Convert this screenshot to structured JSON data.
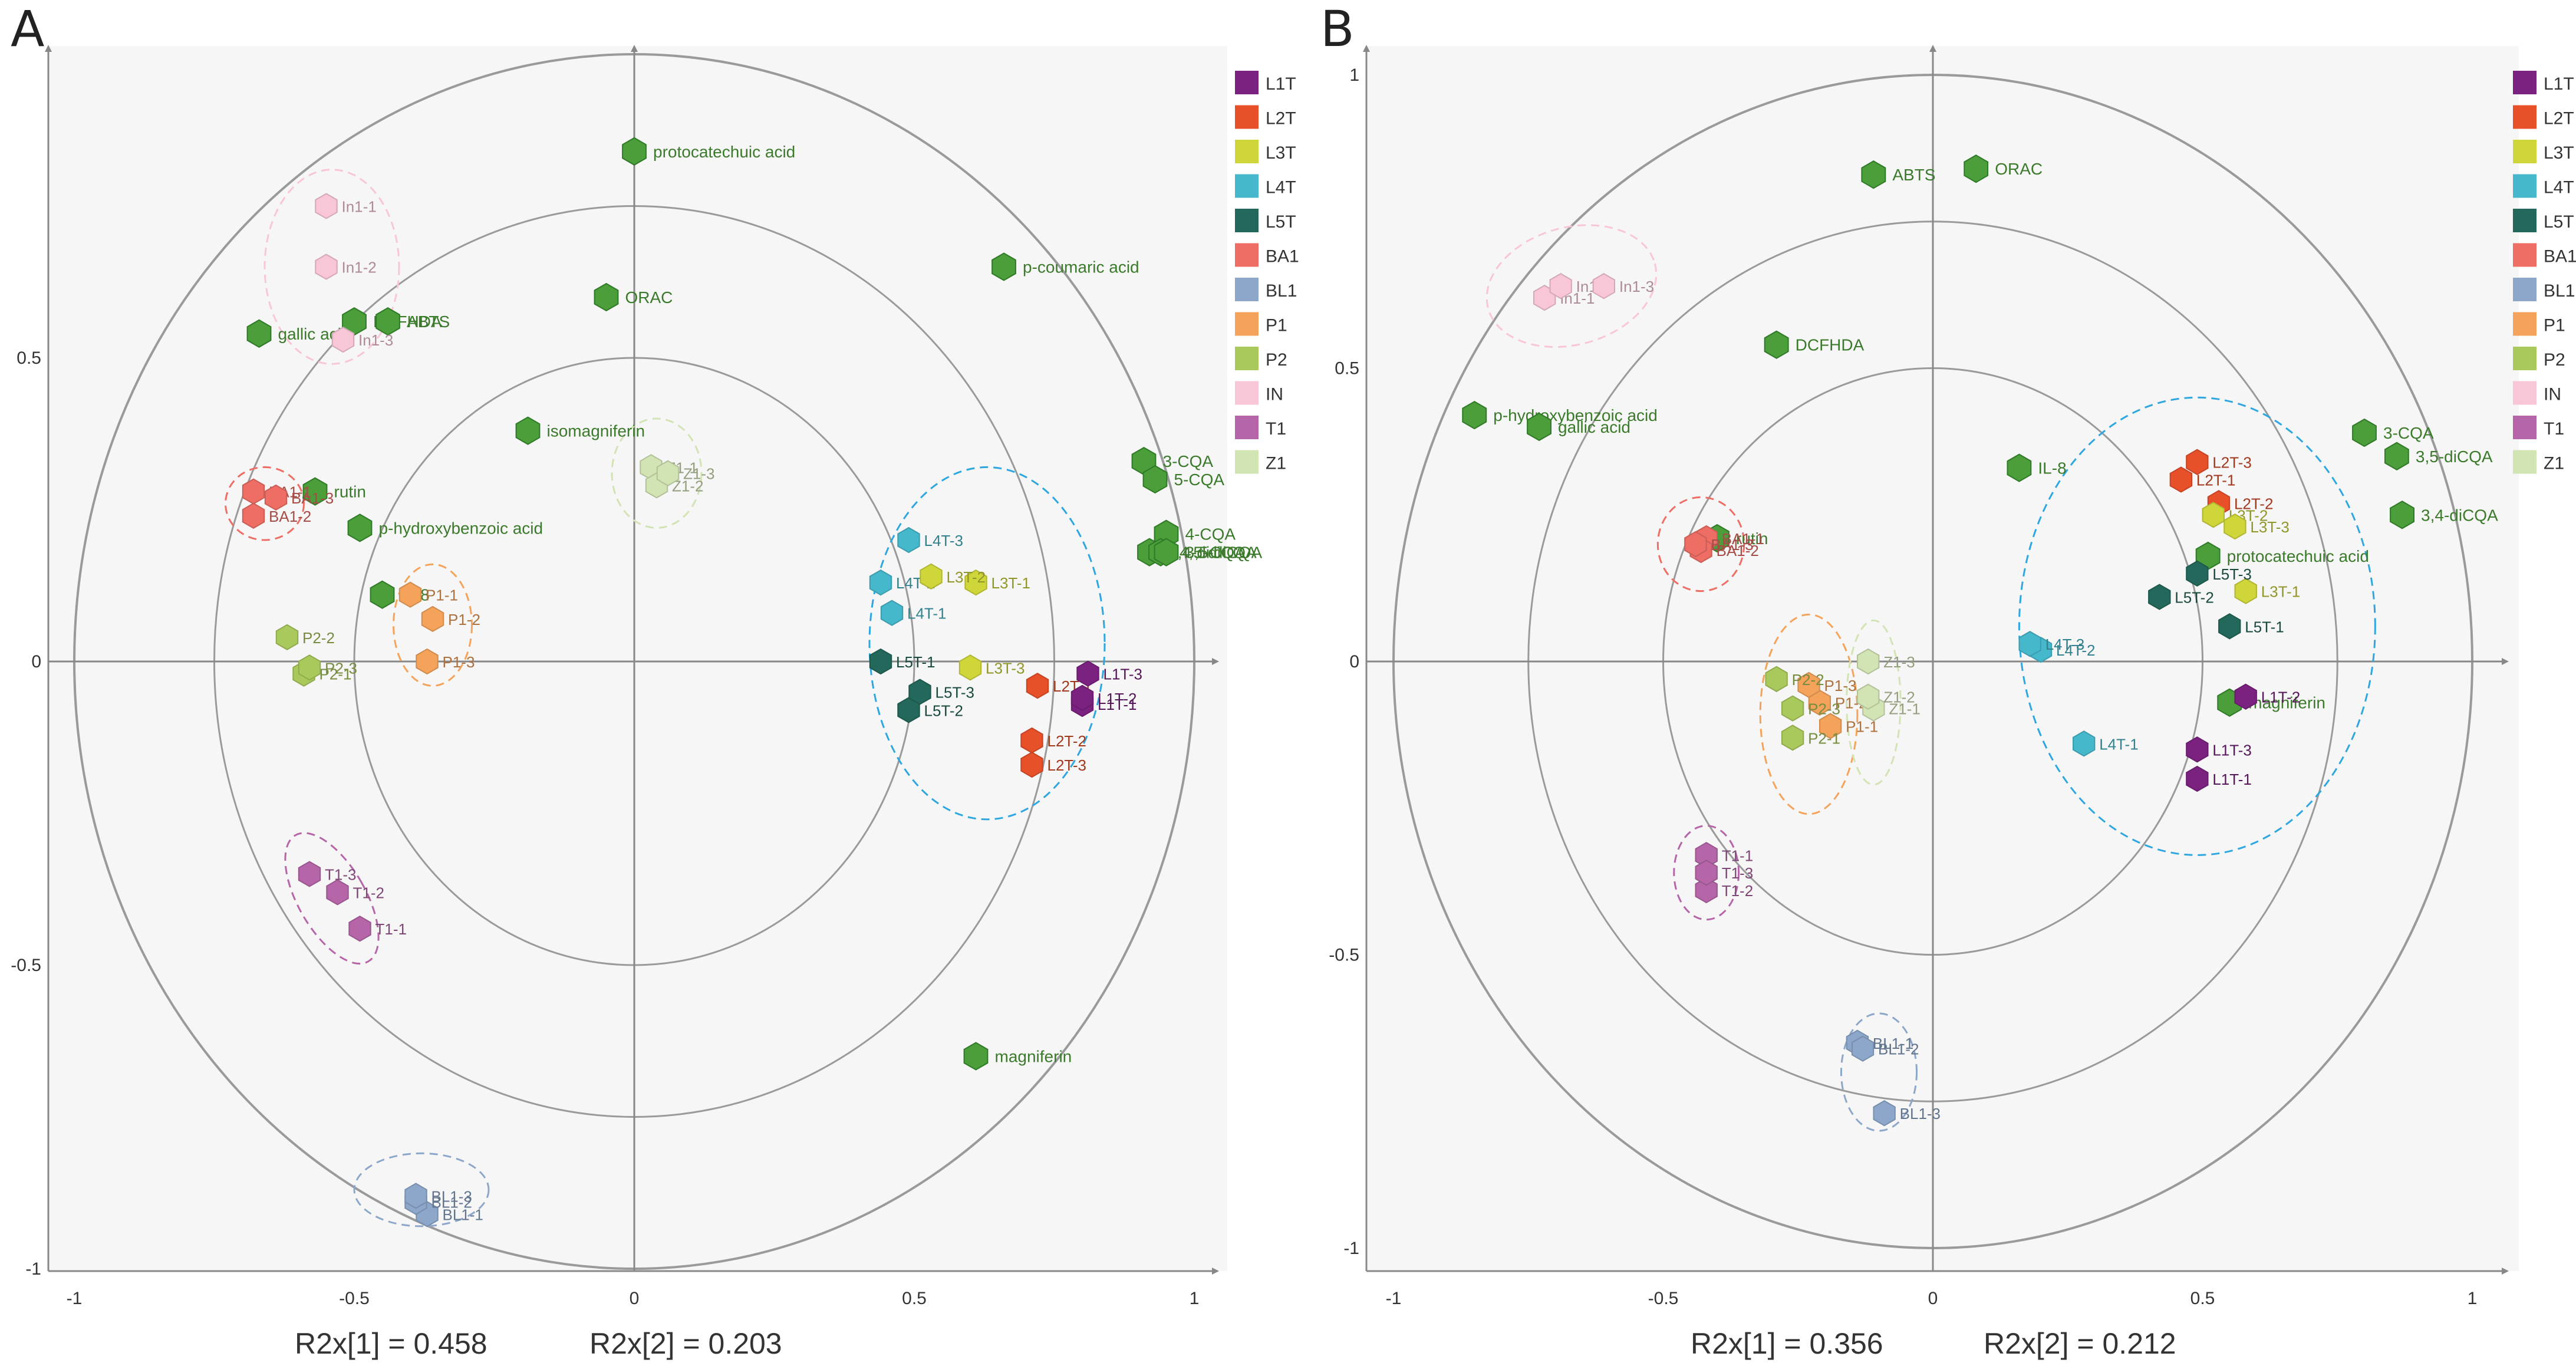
{
  "chart_data": [
    {
      "type": "scatter",
      "panel": "A",
      "subtype": "PCA biplot",
      "xlim": [
        -1,
        1
      ],
      "ylim": [
        -1,
        1
      ],
      "xticks": [
        {
          "v": -1,
          "label": "-1"
        },
        {
          "v": -0.5,
          "label": "-0.5"
        },
        {
          "v": 0,
          "label": "0"
        },
        {
          "v": 0.5,
          "label": "0.5"
        },
        {
          "v": 1,
          "label": "1"
        }
      ],
      "yticks": [
        {
          "v": -1,
          "label": "-1"
        },
        {
          "v": -0.5,
          "label": "-0.5"
        },
        {
          "v": 0,
          "label": "0"
        },
        {
          "v": 0.5,
          "label": "0.5"
        }
      ],
      "circle_radii": [
        0.5,
        0.75,
        1.0
      ],
      "r2x1": "R2x[1] = 0.458",
      "r2x2": "R2x[2] = 0.203",
      "variables": [
        {
          "label": "protocatechuic acid",
          "x": 0.0,
          "y": 0.84
        },
        {
          "label": "p-coumaric acid",
          "x": 0.66,
          "y": 0.65
        },
        {
          "label": "ORAC",
          "x": -0.05,
          "y": 0.6
        },
        {
          "label": "gallic acid",
          "x": -0.67,
          "y": 0.54
        },
        {
          "label": "DCFHDA",
          "x": -0.5,
          "y": 0.56
        },
        {
          "label": "ABTS",
          "x": -0.44,
          "y": 0.56
        },
        {
          "label": "isomagniferin",
          "x": -0.19,
          "y": 0.38
        },
        {
          "label": "rutin",
          "x": -0.57,
          "y": 0.28
        },
        {
          "label": "p-hydroxybenzoic acid",
          "x": -0.49,
          "y": 0.22
        },
        {
          "label": "IL-8",
          "x": -0.45,
          "y": 0.11
        },
        {
          "label": "3-CQA",
          "x": 0.91,
          "y": 0.33
        },
        {
          "label": "5-CQA",
          "x": 0.93,
          "y": 0.3
        },
        {
          "label": "4-CQA",
          "x": 0.95,
          "y": 0.21
        },
        {
          "label": "3,4-diCQA",
          "x": 0.92,
          "y": 0.18
        },
        {
          "label": "4,5-diCQA",
          "x": 0.94,
          "y": 0.18
        },
        {
          "label": "3,5-diCQA",
          "x": 0.95,
          "y": 0.18
        },
        {
          "label": "magniferin",
          "x": 0.61,
          "y": -0.65
        }
      ],
      "samples": [
        {
          "label": "In1-1",
          "group": "IN",
          "x": -0.55,
          "y": 0.75
        },
        {
          "label": "In1-2",
          "group": "IN",
          "x": -0.55,
          "y": 0.65
        },
        {
          "label": "In1-3",
          "group": "IN",
          "x": -0.52,
          "y": 0.53
        },
        {
          "label": "BA1-1",
          "group": "BA1",
          "x": -0.68,
          "y": 0.28
        },
        {
          "label": "BA1-2",
          "group": "BA1",
          "x": -0.68,
          "y": 0.24
        },
        {
          "label": "BA1-3",
          "group": "BA1",
          "x": -0.64,
          "y": 0.27
        },
        {
          "label": "P1-1",
          "group": "P1",
          "x": -0.4,
          "y": 0.11
        },
        {
          "label": "P1-2",
          "group": "P1",
          "x": -0.36,
          "y": 0.07
        },
        {
          "label": "P1-3",
          "group": "P1",
          "x": -0.37,
          "y": 0.0
        },
        {
          "label": "P2-1",
          "group": "P2",
          "x": -0.59,
          "y": -0.02
        },
        {
          "label": "P2-2",
          "group": "P2",
          "x": -0.62,
          "y": 0.04
        },
        {
          "label": "P2-3",
          "group": "P2",
          "x": -0.58,
          "y": -0.01
        },
        {
          "label": "Z1-1",
          "group": "Z1",
          "x": 0.03,
          "y": 0.32
        },
        {
          "label": "Z1-2",
          "group": "Z1",
          "x": 0.04,
          "y": 0.29
        },
        {
          "label": "Z1-3",
          "group": "Z1",
          "x": 0.06,
          "y": 0.31
        },
        {
          "label": "T1-1",
          "group": "T1",
          "x": -0.49,
          "y": -0.44
        },
        {
          "label": "T1-2",
          "group": "T1",
          "x": -0.53,
          "y": -0.38
        },
        {
          "label": "T1-3",
          "group": "T1",
          "x": -0.58,
          "y": -0.35
        },
        {
          "label": "BL1-1",
          "group": "BL1",
          "x": -0.37,
          "y": -0.91
        },
        {
          "label": "BL1-2",
          "group": "BL1",
          "x": -0.39,
          "y": -0.89
        },
        {
          "label": "BL1-3",
          "group": "BL1",
          "x": -0.39,
          "y": -0.88
        },
        {
          "label": "L4T-1",
          "group": "L4T",
          "x": 0.46,
          "y": 0.08
        },
        {
          "label": "L4T-2",
          "group": "L4T",
          "x": 0.44,
          "y": 0.13
        },
        {
          "label": "L4T-3",
          "group": "L4T",
          "x": 0.49,
          "y": 0.2
        },
        {
          "label": "L3T-1",
          "group": "L3T",
          "x": 0.61,
          "y": 0.13
        },
        {
          "label": "L3T-2",
          "group": "L3T",
          "x": 0.53,
          "y": 0.14
        },
        {
          "label": "L3T-3",
          "group": "L3T",
          "x": 0.6,
          "y": -0.01
        },
        {
          "label": "L5T-1",
          "group": "L5T",
          "x": 0.44,
          "y": 0.0
        },
        {
          "label": "L5T-2",
          "group": "L5T",
          "x": 0.49,
          "y": -0.08
        },
        {
          "label": "L5T-3",
          "group": "L5T",
          "x": 0.51,
          "y": -0.05
        },
        {
          "label": "L2T-1",
          "group": "L2T",
          "x": 0.72,
          "y": -0.04
        },
        {
          "label": "L2T-2",
          "group": "L2T",
          "x": 0.71,
          "y": -0.13
        },
        {
          "label": "L2T-3",
          "group": "L2T",
          "x": 0.71,
          "y": -0.17
        },
        {
          "label": "L1T-1",
          "group": "L1T",
          "x": 0.8,
          "y": -0.07
        },
        {
          "label": "L1T-2",
          "group": "L1T",
          "x": 0.8,
          "y": -0.06
        },
        {
          "label": "L1T-3",
          "group": "L1T",
          "x": 0.81,
          "y": -0.02
        }
      ],
      "ellipses": [
        {
          "group": "IN",
          "cx": -0.54,
          "cy": 0.65,
          "rx": 0.12,
          "ry": 0.16
        },
        {
          "group": "BA1",
          "cx": -0.66,
          "cy": 0.26,
          "rx": 0.07,
          "ry": 0.06
        },
        {
          "group": "P1",
          "cx": -0.36,
          "cy": 0.06,
          "rx": 0.07,
          "ry": 0.1
        },
        {
          "group": "Z1",
          "cx": 0.04,
          "cy": 0.31,
          "rx": 0.08,
          "ry": 0.09
        },
        {
          "group": "T1",
          "cx": -0.54,
          "cy": -0.39,
          "rx": 0.06,
          "ry": 0.12,
          "rot": -30
        },
        {
          "group": "BL1",
          "cx": -0.38,
          "cy": -0.87,
          "rx": 0.12,
          "ry": 0.06
        },
        {
          "group": "L",
          "cx": 0.63,
          "cy": 0.03,
          "rx": 0.21,
          "ry": 0.29
        }
      ]
    },
    {
      "type": "scatter",
      "panel": "B",
      "subtype": "PCA biplot",
      "xlim": [
        -1,
        1
      ],
      "ylim": [
        -1,
        1
      ],
      "xticks": [
        {
          "v": -1,
          "label": "-1"
        },
        {
          "v": -0.5,
          "label": "-0.5"
        },
        {
          "v": 0,
          "label": "0"
        },
        {
          "v": 0.5,
          "label": "0.5"
        },
        {
          "v": 1,
          "label": "1"
        }
      ],
      "yticks": [
        {
          "v": -1,
          "label": "-1"
        },
        {
          "v": -0.5,
          "label": "-0.5"
        },
        {
          "v": 0,
          "label": "0"
        },
        {
          "v": 0.5,
          "label": "0.5"
        },
        {
          "v": 1,
          "label": "1"
        }
      ],
      "circle_radii": [
        0.5,
        0.75,
        1.0
      ],
      "r2x1": "R2x[1] = 0.356",
      "r2x2": "R2x[2] = 0.212",
      "variables": [
        {
          "label": "ABTS",
          "x": -0.11,
          "y": 0.83
        },
        {
          "label": "ORAC",
          "x": 0.08,
          "y": 0.84
        },
        {
          "label": "DCFHDA",
          "x": -0.29,
          "y": 0.54
        },
        {
          "label": "p-hydroxybenzoic acid",
          "x": -0.85,
          "y": 0.42
        },
        {
          "label": "gallic acid",
          "x": -0.73,
          "y": 0.4
        },
        {
          "label": "rutin",
          "x": -0.4,
          "y": 0.21
        },
        {
          "label": "IL-8",
          "x": 0.16,
          "y": 0.33
        },
        {
          "label": "3-CQA",
          "x": 0.8,
          "y": 0.39
        },
        {
          "label": "3,5-diCQA",
          "x": 0.86,
          "y": 0.35
        },
        {
          "label": "3,4-diCQA",
          "x": 0.87,
          "y": 0.25
        },
        {
          "label": "protocatechuic acid",
          "x": 0.51,
          "y": 0.18
        },
        {
          "label": "magniferin",
          "x": 0.55,
          "y": -0.07
        }
      ],
      "samples": [
        {
          "label": "In1-1",
          "group": "IN",
          "x": -0.72,
          "y": 0.62
        },
        {
          "label": "In1-2",
          "group": "IN",
          "x": -0.69,
          "y": 0.64
        },
        {
          "label": "In1-3",
          "group": "IN",
          "x": -0.61,
          "y": 0.64
        },
        {
          "label": "BA1-1",
          "group": "BA1",
          "x": -0.42,
          "y": 0.21
        },
        {
          "label": "BA1-2",
          "group": "BA1",
          "x": -0.43,
          "y": 0.19
        },
        {
          "label": "BA1-3",
          "group": "BA1",
          "x": -0.44,
          "y": 0.2
        },
        {
          "label": "P1-1",
          "group": "P1",
          "x": -0.19,
          "y": -0.11
        },
        {
          "label": "P1-2",
          "group": "P1",
          "x": -0.21,
          "y": -0.07
        },
        {
          "label": "P1-3",
          "group": "P1",
          "x": -0.23,
          "y": -0.04
        },
        {
          "label": "P2-1",
          "group": "P2",
          "x": -0.26,
          "y": -0.13
        },
        {
          "label": "P2-2",
          "group": "P2",
          "x": -0.29,
          "y": -0.03
        },
        {
          "label": "P2-3",
          "group": "P2",
          "x": -0.26,
          "y": -0.08
        },
        {
          "label": "Z1-1",
          "group": "Z1",
          "x": -0.11,
          "y": -0.08
        },
        {
          "label": "Z1-2",
          "group": "Z1",
          "x": -0.12,
          "y": -0.06
        },
        {
          "label": "Z1-3",
          "group": "Z1",
          "x": -0.12,
          "y": 0.0
        },
        {
          "label": "T1-1",
          "group": "T1",
          "x": -0.42,
          "y": -0.33
        },
        {
          "label": "T1-2",
          "group": "T1",
          "x": -0.42,
          "y": -0.39
        },
        {
          "label": "T1-3",
          "group": "T1",
          "x": -0.42,
          "y": -0.36
        },
        {
          "label": "BL1-1",
          "group": "BL1",
          "x": -0.14,
          "y": -0.65
        },
        {
          "label": "BL1-2",
          "group": "BL1",
          "x": -0.13,
          "y": -0.66
        },
        {
          "label": "BL1-3",
          "group": "BL1",
          "x": -0.09,
          "y": -0.77
        },
        {
          "label": "L1T-1",
          "group": "L1T",
          "x": 0.49,
          "y": -0.2
        },
        {
          "label": "L1T-2",
          "group": "L1T",
          "x": 0.58,
          "y": -0.06
        },
        {
          "label": "L1T-3",
          "group": "L1T",
          "x": 0.49,
          "y": -0.15
        },
        {
          "label": "L2T-1",
          "group": "L2T",
          "x": 0.46,
          "y": 0.31
        },
        {
          "label": "L2T-2",
          "group": "L2T",
          "x": 0.53,
          "y": 0.27
        },
        {
          "label": "L2T-3",
          "group": "L2T",
          "x": 0.49,
          "y": 0.34
        },
        {
          "label": "L3T-1",
          "group": "L3T",
          "x": 0.58,
          "y": 0.12
        },
        {
          "label": "L3T-2",
          "group": "L3T",
          "x": 0.52,
          "y": 0.25
        },
        {
          "label": "L3T-3",
          "group": "L3T",
          "x": 0.56,
          "y": 0.23
        },
        {
          "label": "L4T-1",
          "group": "L4T",
          "x": 0.28,
          "y": -0.14
        },
        {
          "label": "L4T-2",
          "group": "L4T",
          "x": 0.2,
          "y": 0.02
        },
        {
          "label": "L4T-3",
          "group": "L4T",
          "x": 0.18,
          "y": 0.03
        },
        {
          "label": "L5T-1",
          "group": "L5T",
          "x": 0.55,
          "y": 0.06
        },
        {
          "label": "L5T-2",
          "group": "L5T",
          "x": 0.42,
          "y": 0.11
        },
        {
          "label": "L5T-3",
          "group": "L5T",
          "x": 0.49,
          "y": 0.15
        }
      ],
      "ellipses": [
        {
          "group": "IN",
          "cx": -0.67,
          "cy": 0.64,
          "rx": 0.16,
          "ry": 0.1,
          "rot": -15
        },
        {
          "group": "BA1",
          "cx": -0.43,
          "cy": 0.2,
          "rx": 0.08,
          "ry": 0.08
        },
        {
          "group": "P1",
          "cx": -0.23,
          "cy": -0.09,
          "rx": 0.09,
          "ry": 0.17
        },
        {
          "group": "Z1",
          "cx": -0.11,
          "cy": -0.07,
          "rx": 0.05,
          "ry": 0.14
        },
        {
          "group": "T1",
          "cx": -0.42,
          "cy": -0.36,
          "rx": 0.06,
          "ry": 0.08
        },
        {
          "group": "BL1",
          "cx": -0.1,
          "cy": -0.7,
          "rx": 0.07,
          "ry": 0.1
        },
        {
          "group": "L",
          "cx": 0.49,
          "cy": 0.06,
          "rx": 0.33,
          "ry": 0.39
        }
      ]
    }
  ],
  "legend": [
    {
      "label": "L1T",
      "color": "#7b2180"
    },
    {
      "label": "L2T",
      "color": "#e8502a"
    },
    {
      "label": "L3T",
      "color": "#cfd63a"
    },
    {
      "label": "L4T",
      "color": "#46b8cc"
    },
    {
      "label": "L5T",
      "color": "#23685a"
    },
    {
      "label": "BA1",
      "color": "#ee6e65"
    },
    {
      "label": "BL1",
      "color": "#8ca7ca"
    },
    {
      "label": "P1",
      "color": "#f5a35a"
    },
    {
      "label": "P2",
      "color": "#a9c95c"
    },
    {
      "label": "IN",
      "color": "#f8c6d7"
    },
    {
      "label": "T1",
      "color": "#b565a8"
    },
    {
      "label": "Z1",
      "color": "#d2e3b4"
    }
  ],
  "colors": {
    "variable": "#4b9e3a",
    "variable_stroke": "#2f7a26",
    "variable_text": "#3a7a2a",
    "plot_bg": "#f6f6f6",
    "circle": "#9a9a9a",
    "axis": "#888888",
    "L_ellipse": "#2ea7e0"
  }
}
